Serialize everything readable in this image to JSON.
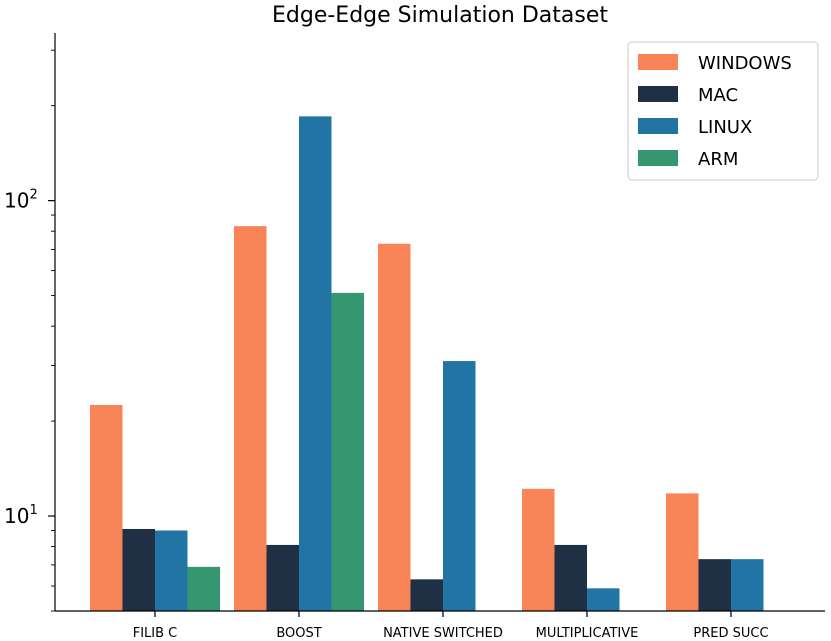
{
  "chart_data": {
    "type": "bar",
    "title": "Edge-Edge Simulation Dataset",
    "xlabel": "",
    "ylabel": "",
    "yscale": "log",
    "ylim": [
      5,
      340
    ],
    "categories": [
      "FILIB C",
      "BOOST",
      "NATIVE SWITCHED",
      "MULTIPLICATIVE",
      "PRED SUCC"
    ],
    "series": [
      {
        "name": "WINDOWS",
        "color": "#F98457",
        "values": [
          22.5,
          83,
          73,
          12.2,
          11.8
        ]
      },
      {
        "name": "MAC",
        "color": "#1F3044",
        "values": [
          9.1,
          8.1,
          6.3,
          8.1,
          7.3
        ]
      },
      {
        "name": "LINUX",
        "color": "#2274A5",
        "values": [
          9.0,
          185,
          31,
          5.9,
          7.3
        ]
      },
      {
        "name": "ARM",
        "color": "#359770",
        "values": [
          6.9,
          51,
          null,
          null,
          null
        ]
      }
    ],
    "yticks": [
      {
        "value": 10,
        "base": "10",
        "exp": "1"
      },
      {
        "value": 100,
        "base": "10",
        "exp": "2"
      }
    ],
    "legend": {
      "position": "top-right"
    },
    "grid": false
  }
}
